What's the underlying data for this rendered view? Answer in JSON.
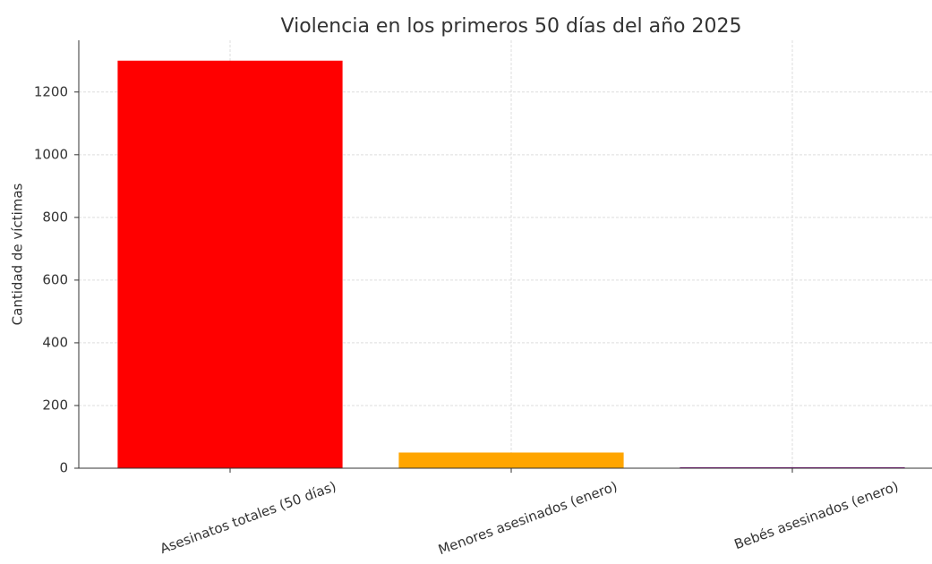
{
  "chart_data": {
    "type": "bar",
    "title": "Violencia en los primeros 50 días del año 2025",
    "y_label": "Cantidad de víctimas",
    "categories": [
      "Asesinatos totales (50 días)",
      "Menores asesinados (enero)",
      "Bebés asesinados (enero)"
    ],
    "values": [
      1300,
      50,
      3
    ],
    "colors": [
      "#ff0000",
      "#ffa500",
      "#800080"
    ],
    "ylim": [
      0,
      1365
    ],
    "yticks": [
      0,
      200,
      400,
      600,
      800,
      1000,
      1200
    ],
    "grid": true
  }
}
